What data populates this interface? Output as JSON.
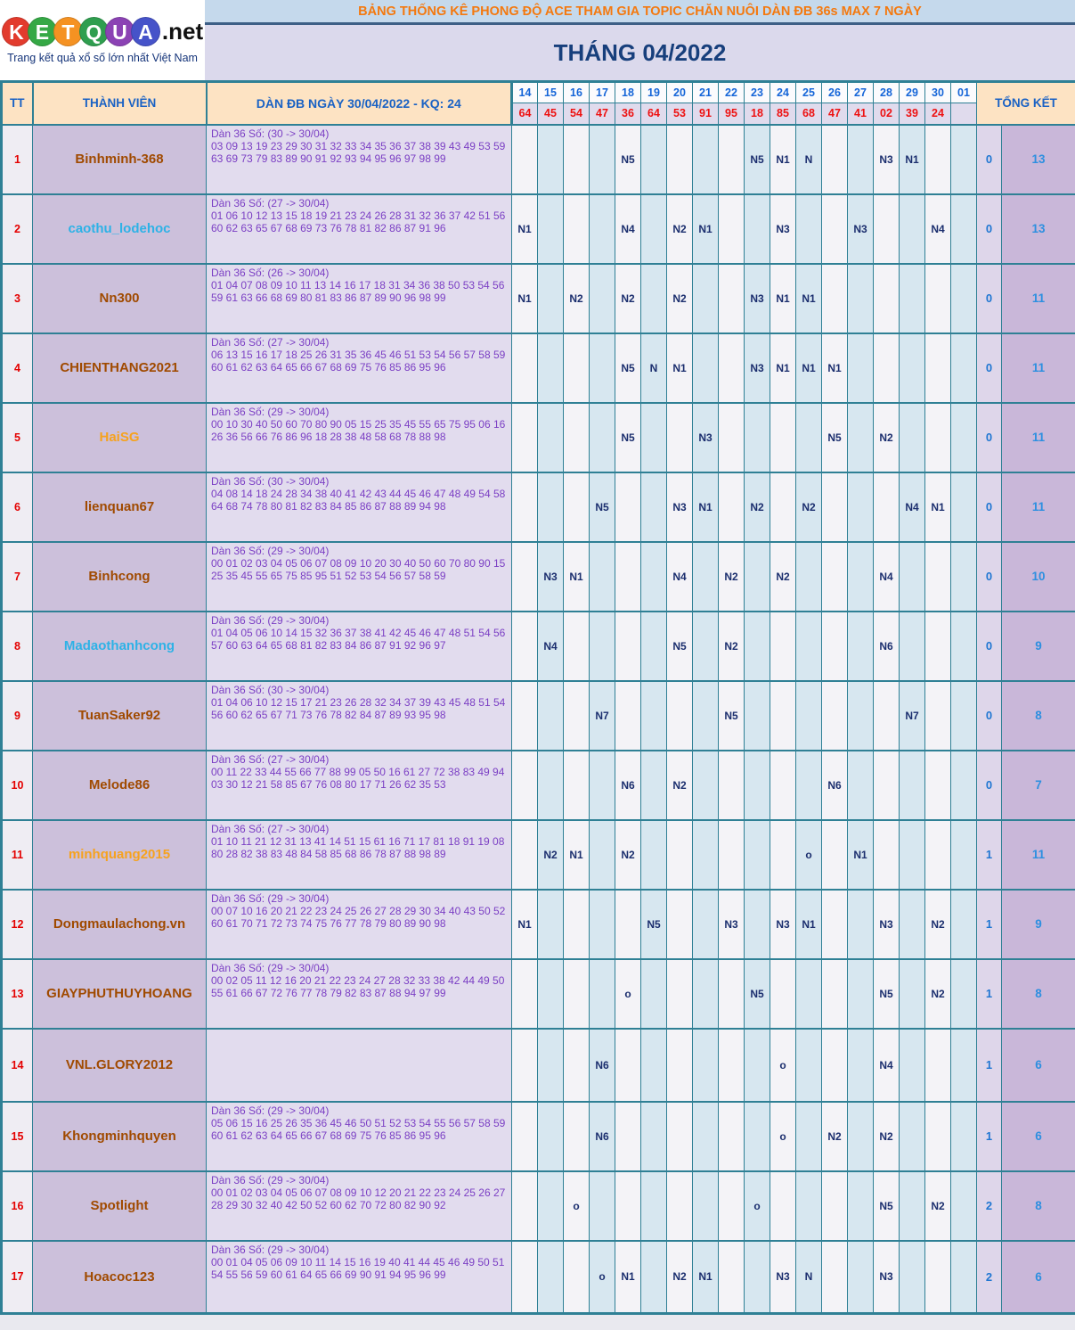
{
  "logo": {
    "letters": [
      {
        "ch": "K",
        "color": "#e23b2d"
      },
      {
        "ch": "E",
        "color": "#35a845"
      },
      {
        "ch": "T",
        "color": "#f59222"
      },
      {
        "ch": "Q",
        "color": "#2f9e4f"
      },
      {
        "ch": "U",
        "color": "#8b42b4"
      },
      {
        "ch": "A",
        "color": "#4653c9"
      }
    ],
    "suffix": ".net",
    "tagline": "Trang kết quả xổ số lớn nhất Việt Nam"
  },
  "banner": {
    "title": "BẢNG THỐNG KÊ PHONG ĐỘ ACE THAM GIA TOPIC CHĂN NUÔI DÀN ĐB 36s MAX 7 NGÀY",
    "month": "THÁNG 04/2022"
  },
  "table": {
    "headers": {
      "tt": "TT",
      "member": "THÀNH VIÊN",
      "dan": "DÀN ĐB NGÀY 30/04/2022 - KQ: 24",
      "summary": "TỔNG KẾT"
    },
    "dates": [
      "14",
      "15",
      "16",
      "17",
      "18",
      "19",
      "20",
      "21",
      "22",
      "23",
      "24",
      "25",
      "26",
      "27",
      "28",
      "29",
      "30",
      "01"
    ],
    "results": [
      "64",
      "45",
      "54",
      "47",
      "36",
      "64",
      "53",
      "91",
      "95",
      "18",
      "85",
      "68",
      "47",
      "41",
      "02",
      "39",
      "24",
      ""
    ],
    "rows": [
      {
        "tt": "1",
        "name": "Binhminh-368",
        "name_color": "#a04a00",
        "dan_header": "Dàn 36 Số: (30 -> 30/04)",
        "numbers": "03 09 13 19 23 29 30 31 32 33 34 35 36 37 38 39 43 49 53 59 63 69 73 79 83 89 90 91 92 93 94 95 96 97 98 99",
        "marks": {
          "18": "N5",
          "23": "N5",
          "24": "N1",
          "25": "N",
          "28": "N3",
          "29": "N1"
        },
        "miss": "0",
        "total": "13"
      },
      {
        "tt": "2",
        "name": "caothu_lodehoc",
        "name_color": "#2eb2e6",
        "dan_header": "Dàn 36 Số: (27 -> 30/04)",
        "numbers": "01 06 10 12 13 15 18 19 21 23 24 26 28 31 32 36 37 42 51 56 60 62 63 65 67 68 69 73 76 78 81 82 86 87 91 96",
        "marks": {
          "14": "N1",
          "18": "N4",
          "20": "N2",
          "21": "N1",
          "24": "N3",
          "27": "N3",
          "30": "N4"
        },
        "miss": "0",
        "total": "13"
      },
      {
        "tt": "3",
        "name": "Nn300",
        "name_color": "#a04a00",
        "dan_header": "Dàn 36 Số: (26 -> 30/04)",
        "numbers": "01 04 07 08 09 10 11 13 14 16 17 18 31 34 36 38 50 53 54 56 59 61 63 66 68 69 80 81 83 86 87 89 90 96 98 99",
        "marks": {
          "14": "N1",
          "16": "N2",
          "18": "N2",
          "20": "N2",
          "23": "N3",
          "24": "N1",
          "25": "N1"
        },
        "miss": "0",
        "total": "11"
      },
      {
        "tt": "4",
        "name": "CHIENTHANG2021",
        "name_color": "#a04a00",
        "dan_header": "Dàn 36 Số: (27 -> 30/04)",
        "numbers": "06 13 15 16 17 18 25 26 31 35 36 45 46 51 53 54 56 57 58 59 60 61 62 63 64 65 66 67 68 69 75 76 85 86 95 96",
        "marks": {
          "18": "N5",
          "19": "N",
          "20": "N1",
          "23": "N3",
          "24": "N1",
          "25": "N1",
          "26": "N1"
        },
        "miss": "0",
        "total": "11"
      },
      {
        "tt": "5",
        "name": "HaiSG",
        "name_color": "#f6a21e",
        "dan_header": "Dàn 36 Số: (29 -> 30/04)",
        "numbers": "00 10 30 40 50 60 70 80 90 05 15 25 35 45 55 65 75 95 06 16 26 36 56 66 76 86 96 18 28 38 48 58 68 78 88 98",
        "marks": {
          "18": "N5",
          "21": "N3",
          "26": "N5",
          "28": "N2"
        },
        "miss": "0",
        "total": "11"
      },
      {
        "tt": "6",
        "name": "lienquan67",
        "name_color": "#a04a00",
        "dan_header": "Dàn 36 Số: (30 -> 30/04)",
        "numbers": "04 08 14 18 24 28 34 38 40 41 42 43 44 45 46 47 48 49 54 58 64 68 74 78 80 81 82 83 84 85 86 87 88 89 94 98",
        "marks": {
          "17": "N5",
          "20": "N3",
          "21": "N1",
          "23": "N2",
          "25": "N2",
          "29": "N4",
          "30": "N1"
        },
        "miss": "0",
        "total": "11"
      },
      {
        "tt": "7",
        "name": "Binhcong",
        "name_color": "#a04a00",
        "dan_header": "Dàn 36 Số: (29 -> 30/04)",
        "numbers": "00 01 02 03 04 05 06 07 08 09 10 20 30 40 50 60 70 80 90 15 25 35 45 55 65 75 85 95 51 52 53 54 56 57 58 59",
        "marks": {
          "15": "N3",
          "16": "N1",
          "20": "N4",
          "22": "N2",
          "24": "N2",
          "28": "N4"
        },
        "miss": "0",
        "total": "10"
      },
      {
        "tt": "8",
        "name": "Madaothanhcong",
        "name_color": "#2eb2e6",
        "dan_header": "Dàn 36 Số: (29 -> 30/04)",
        "numbers": "01 04 05 06 10 14 15 32 36 37 38 41 42 45 46 47 48 51 54 56 57 60 63 64 65 68 81 82 83 84 86 87 91 92 96 97",
        "marks": {
          "15": "N4",
          "20": "N5",
          "22": "N2",
          "28": "N6"
        },
        "miss": "0",
        "total": "9"
      },
      {
        "tt": "9",
        "name": "TuanSaker92",
        "name_color": "#a04a00",
        "dan_header": "Dàn 36 Số: (30 -> 30/04)",
        "numbers": "01 04 06 10 12 15 17 21 23 26 28 32 34 37 39 43 45 48 51 54 56 60 62 65 67 71 73 76 78 82 84 87 89 93 95 98",
        "marks": {
          "17": "N7",
          "22": "N5",
          "29": "N7"
        },
        "miss": "0",
        "total": "8"
      },
      {
        "tt": "10",
        "name": "Melode86",
        "name_color": "#a04a00",
        "dan_header": "Dàn 36 Số: (27 -> 30/04)",
        "numbers": "00 11 22 33 44 55 66 77 88 99 05 50 16 61 27 72 38 83 49 94 03 30 12 21 58 85 67 76 08 80 17 71 26 62 35 53",
        "marks": {
          "18": "N6",
          "20": "N2",
          "26": "N6"
        },
        "miss": "0",
        "total": "7"
      },
      {
        "tt": "11",
        "name": "minhquang2015",
        "name_color": "#f6a21e",
        "dan_header": "Dàn 36 Số: (27 -> 30/04)",
        "numbers": "01 10 11 21 12 31 13 41 14 51 15 61 16 71 17 81 18 91 19 08 80 28 82 38 83 48 84 58 85 68 86 78 87 88 98 89",
        "marks": {
          "15": "N2",
          "16": "N1",
          "18": "N2",
          "25": "o",
          "27": "N1"
        },
        "miss": "1",
        "total": "11"
      },
      {
        "tt": "12",
        "name": "Dongmaulachong.vn",
        "name_color": "#a04a00",
        "dan_header": "Dàn 36 Số: (29 -> 30/04)",
        "numbers": "00 07 10 16 20 21 22 23 24 25 26 27 28 29 30 34 40 43 50 52 60 61 70 71 72 73 74 75 76 77 78 79 80 89 90 98",
        "marks": {
          "14": "N1",
          "19": "N5",
          "22": "N3",
          "24": "N3",
          "25": "N1",
          "28": "N3",
          "30": "N2"
        },
        "miss": "1",
        "total": "9"
      },
      {
        "tt": "13",
        "name": "GIAYPHUTHUYHOANG",
        "name_color": "#a04a00",
        "dan_header": "Dàn 36 Số: (29 -> 30/04)",
        "numbers": "00 02 05 11 12 16 20 21 22 23 24 27 28 32 33 38 42 44 49 50 55 61 66 67 72 76 77 78 79 82 83 87 88 94 97 99",
        "marks": {
          "18": "o",
          "23": "N5",
          "28": "N5",
          "30": "N2"
        },
        "miss": "1",
        "total": "8"
      },
      {
        "tt": "14",
        "name": "VNL.GLORY2012",
        "name_color": "#a04a00",
        "dan_header": "",
        "numbers": "",
        "marks": {
          "17": "N6",
          "24": "o",
          "28": "N4"
        },
        "miss": "1",
        "total": "6"
      },
      {
        "tt": "15",
        "name": "Khongminhquyen",
        "name_color": "#a04a00",
        "dan_header": "Dàn 36 Số: (29 -> 30/04)",
        "numbers": "05 06 15 16 25 26 35 36 45 46 50 51 52 53 54 55 56 57 58 59 60 61 62 63 64 65 66 67 68 69 75 76 85 86 95 96",
        "marks": {
          "17": "N6",
          "24": "o",
          "26": "N2",
          "28": "N2"
        },
        "miss": "1",
        "total": "6"
      },
      {
        "tt": "16",
        "name": "Spotlight",
        "name_color": "#a04a00",
        "dan_header": "Dàn 36 Số: (29 -> 30/04)",
        "numbers": "00 01 02 03 04 05 06 07 08 09 10 12 20 21 22 23 24 25 26 27 28 29 30 32 40 42 50 52 60 62 70 72 80 82 90 92",
        "marks": {
          "16": "o",
          "23": "o",
          "28": "N5",
          "30": "N2"
        },
        "miss": "2",
        "total": "8"
      },
      {
        "tt": "17",
        "name": "Hoacoc123",
        "name_color": "#a04a00",
        "dan_header": "Dàn 36 Số: (29 -> 30/04)",
        "numbers": "00 01 04 05 06 09 10 11 14 15 16 19 40 41 44 45 46 49 50 51 54 55 56 59 60 61 64 65 66 69 90 91 94 95 96 99",
        "marks": {
          "17": "o",
          "18": "N1",
          "20": "N2",
          "21": "N1",
          "24": "N3",
          "25": "N",
          "28": "N3"
        },
        "miss": "2",
        "total": "6"
      }
    ]
  }
}
